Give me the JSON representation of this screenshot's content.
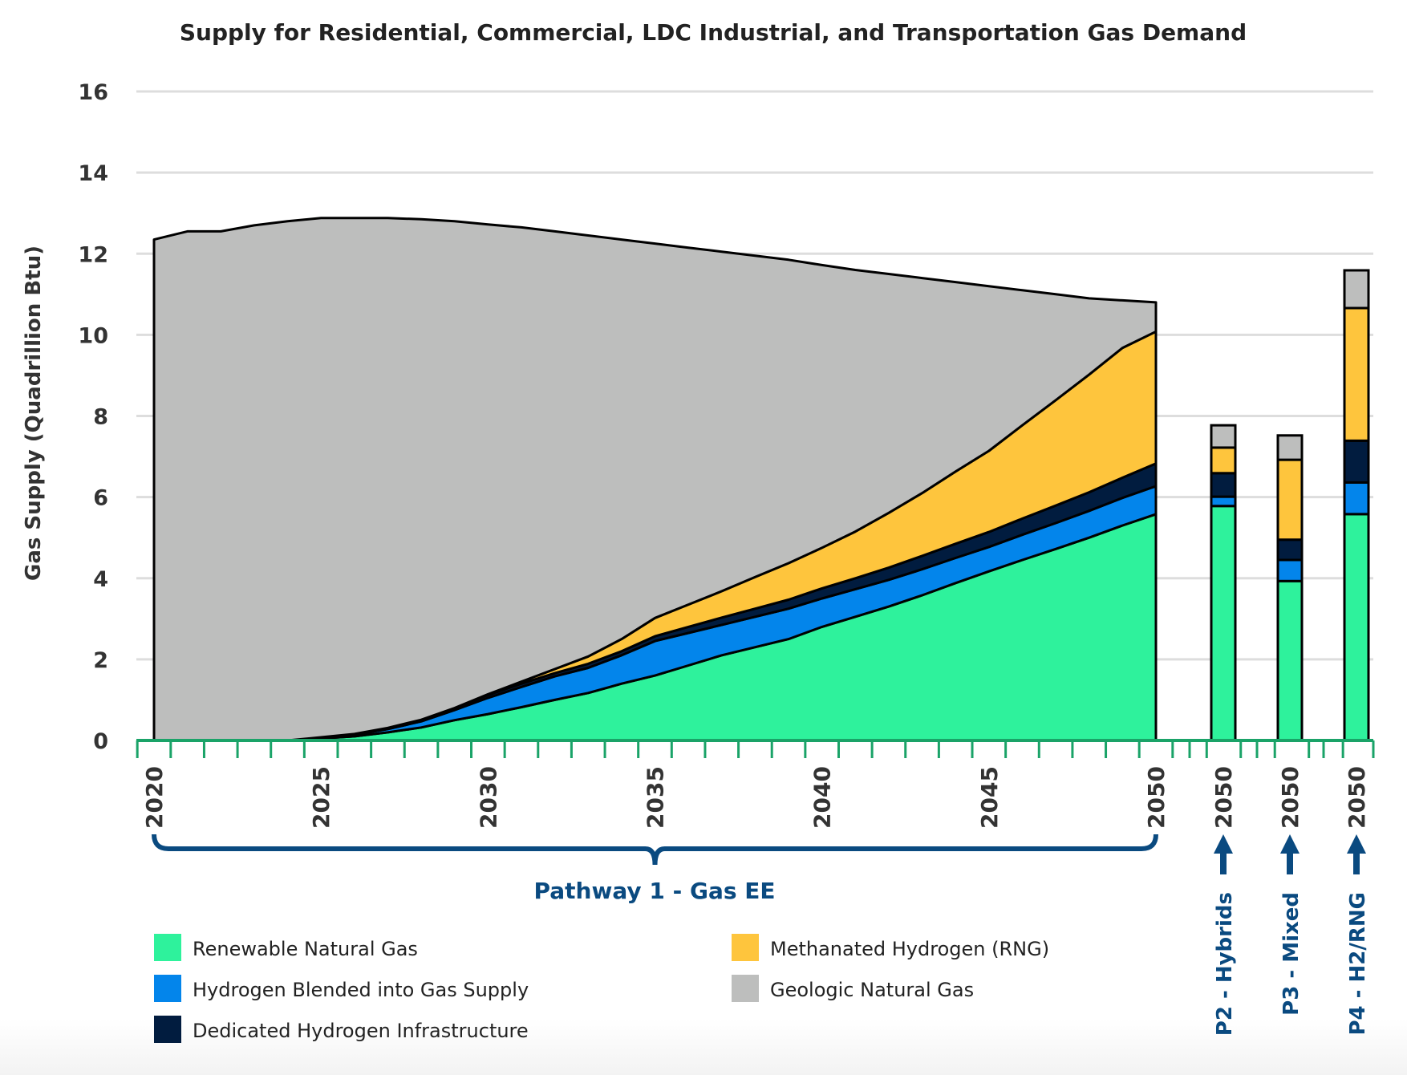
{
  "chart_data": {
    "type": "area",
    "title": "Supply for Residential, Commercial, LDC Industrial, and Transportation Gas Demand",
    "ylabel": "Gas Supply (Quadrillion Btu)",
    "xlabel": "",
    "ylim": [
      0,
      16
    ],
    "yticks": [
      0,
      2,
      4,
      6,
      8,
      10,
      12,
      14,
      16
    ],
    "grid": true,
    "stacked": true,
    "x": [
      2020,
      2021,
      2022,
      2023,
      2024,
      2025,
      2026,
      2027,
      2028,
      2029,
      2030,
      2031,
      2032,
      2033,
      2034,
      2035,
      2036,
      2037,
      2038,
      2039,
      2040,
      2041,
      2042,
      2043,
      2044,
      2045,
      2046,
      2047,
      2048,
      2049,
      2050
    ],
    "xtick_labels": [
      "2020",
      "2025",
      "2030",
      "2035",
      "2040",
      "2045",
      "2050"
    ],
    "series": [
      {
        "name": "Renewable Natural Gas",
        "color": "#2ef29c",
        "values": [
          0,
          0,
          0,
          0,
          0,
          0.05,
          0.1,
          0.2,
          0.32,
          0.5,
          0.65,
          0.82,
          1.0,
          1.17,
          1.4,
          1.6,
          1.85,
          2.1,
          2.3,
          2.5,
          2.8,
          3.05,
          3.3,
          3.58,
          3.88,
          4.17,
          4.45,
          4.72,
          5.0,
          5.3,
          5.58
        ]
      },
      {
        "name": "Hydrogen Blended into Gas Supply",
        "color": "#0385eb",
        "values": [
          0,
          0,
          0,
          0,
          0,
          0.02,
          0.04,
          0.08,
          0.15,
          0.25,
          0.4,
          0.5,
          0.58,
          0.62,
          0.7,
          0.85,
          0.8,
          0.75,
          0.75,
          0.75,
          0.7,
          0.68,
          0.66,
          0.64,
          0.62,
          0.6,
          0.62,
          0.64,
          0.66,
          0.68,
          0.69
        ]
      },
      {
        "name": "Dedicated Hydrogen Infrastructure",
        "color": "#011c3f",
        "values": [
          0,
          0,
          0,
          0,
          0,
          0.01,
          0.02,
          0.03,
          0.04,
          0.05,
          0.07,
          0.08,
          0.08,
          0.1,
          0.1,
          0.12,
          0.15,
          0.18,
          0.2,
          0.22,
          0.25,
          0.27,
          0.3,
          0.33,
          0.35,
          0.37,
          0.4,
          0.43,
          0.46,
          0.5,
          0.56
        ]
      },
      {
        "name": "Methanated Hydrogen (RNG)",
        "color": "#fec53d",
        "values": [
          0,
          0,
          0,
          0,
          0,
          0,
          0,
          0,
          0,
          0,
          0.02,
          0.05,
          0.1,
          0.18,
          0.3,
          0.45,
          0.55,
          0.65,
          0.78,
          0.9,
          1.0,
          1.15,
          1.35,
          1.55,
          1.78,
          2.0,
          2.3,
          2.6,
          2.9,
          3.2,
          3.25
        ]
      },
      {
        "name": "Geologic Natural Gas",
        "color": "#bdbebd",
        "values": [
          12.35,
          12.55,
          12.55,
          12.7,
          12.8,
          12.8,
          12.72,
          12.57,
          12.34,
          12.0,
          11.58,
          11.2,
          10.79,
          10.38,
          9.85,
          9.23,
          8.8,
          8.37,
          7.92,
          7.48,
          6.97,
          6.45,
          5.89,
          5.3,
          4.67,
          4.06,
          3.33,
          2.61,
          1.88,
          1.17,
          0.72
        ]
      }
    ],
    "bars": [
      {
        "label": "2050",
        "pathway": "P2 - Hybrids",
        "values": [
          5.78,
          0.23,
          0.58,
          0.63,
          0.55
        ]
      },
      {
        "label": "2050",
        "pathway": "P3 - Mixed",
        "values": [
          3.93,
          0.52,
          0.5,
          1.97,
          0.6
        ]
      },
      {
        "label": "2050",
        "pathway": "P4 - H2/RNG",
        "values": [
          5.58,
          0.78,
          1.03,
          3.27,
          0.93
        ]
      }
    ],
    "bracket_label": "Pathway 1 - Gas EE",
    "legend_position": "bottom-left"
  },
  "colors": {
    "axis": "#1aa368",
    "grid": "#dddddd",
    "annotation": "#0a4a80"
  }
}
